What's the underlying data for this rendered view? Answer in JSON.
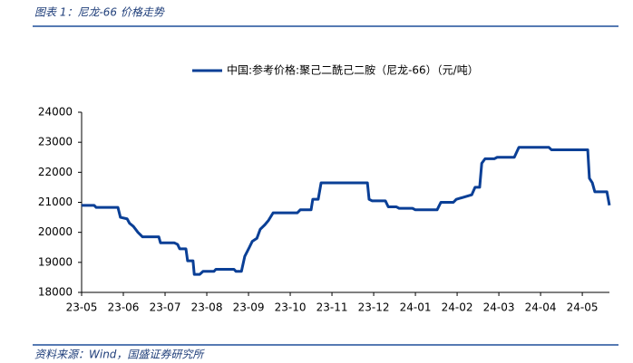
{
  "header": {
    "title": "图表 1：尼龙-66 价格走势"
  },
  "chart_data": {
    "type": "line",
    "legend": "top",
    "series": [
      {
        "name": "中国:参考价格:聚己二酰己二胺（尼龙-66）（元/吨）",
        "color": "#0a3f96",
        "x": [
          0,
          0.3,
          0.35,
          0.87,
          0.93,
          1.09,
          1.15,
          1.24,
          1.35,
          1.46,
          1.85,
          1.89,
          2.22,
          2.3,
          2.35,
          2.5,
          2.54,
          2.67,
          2.7,
          2.83,
          2.91,
          3.17,
          3.22,
          3.65,
          3.7,
          3.83,
          3.91,
          4.02,
          4.09,
          4.2,
          4.28,
          4.39,
          4.48,
          4.59,
          5.17,
          5.24,
          5.5,
          5.54,
          5.67,
          5.74,
          6.85,
          6.89,
          6.96,
          7.28,
          7.35,
          7.54,
          7.61,
          7.93,
          8.0,
          8.52,
          8.61,
          8.91,
          8.98,
          9.35,
          9.43,
          9.54,
          9.59,
          9.67,
          9.89,
          9.96,
          10.37,
          10.48,
          11.2,
          11.26,
          12.13,
          12.17,
          12.24,
          12.3,
          12.59,
          12.65
        ],
        "values": [
          20900,
          20900,
          20830,
          20830,
          20500,
          20450,
          20300,
          20200,
          20000,
          19850,
          19850,
          19650,
          19650,
          19600,
          19450,
          19450,
          19050,
          19050,
          18600,
          18600,
          18700,
          18700,
          18770,
          18770,
          18700,
          18700,
          19200,
          19500,
          19700,
          19800,
          20100,
          20250,
          20400,
          20650,
          20650,
          20750,
          20750,
          21100,
          21100,
          21650,
          21650,
          21100,
          21050,
          21050,
          20850,
          20850,
          20800,
          20800,
          20750,
          20750,
          21000,
          21000,
          21100,
          21250,
          21500,
          21500,
          22300,
          22450,
          22450,
          22500,
          22500,
          22830,
          22830,
          22750,
          22750,
          21800,
          21650,
          21350,
          21350,
          20900
        ]
      }
    ],
    "xlim": [
      0,
      12.65
    ],
    "xticks": [
      {
        "value": 0,
        "label": "23-05"
      },
      {
        "value": 1,
        "label": "23-06"
      },
      {
        "value": 2,
        "label": "23-07"
      },
      {
        "value": 3,
        "label": "23-08"
      },
      {
        "value": 4,
        "label": "23-09"
      },
      {
        "value": 5,
        "label": "23-10"
      },
      {
        "value": 6,
        "label": "23-11"
      },
      {
        "value": 7,
        "label": "23-12"
      },
      {
        "value": 8,
        "label": "24-01"
      },
      {
        "value": 9,
        "label": "24-02"
      },
      {
        "value": 10,
        "label": "24-03"
      },
      {
        "value": 11,
        "label": "24-04"
      },
      {
        "value": 12,
        "label": "24-05"
      }
    ],
    "ylim": [
      18000,
      24000
    ],
    "yticks": [
      18000,
      19000,
      20000,
      21000,
      22000,
      23000,
      24000
    ],
    "grid": false
  },
  "footer": {
    "source": "资料来源：Wind，国盛证券研究所"
  }
}
